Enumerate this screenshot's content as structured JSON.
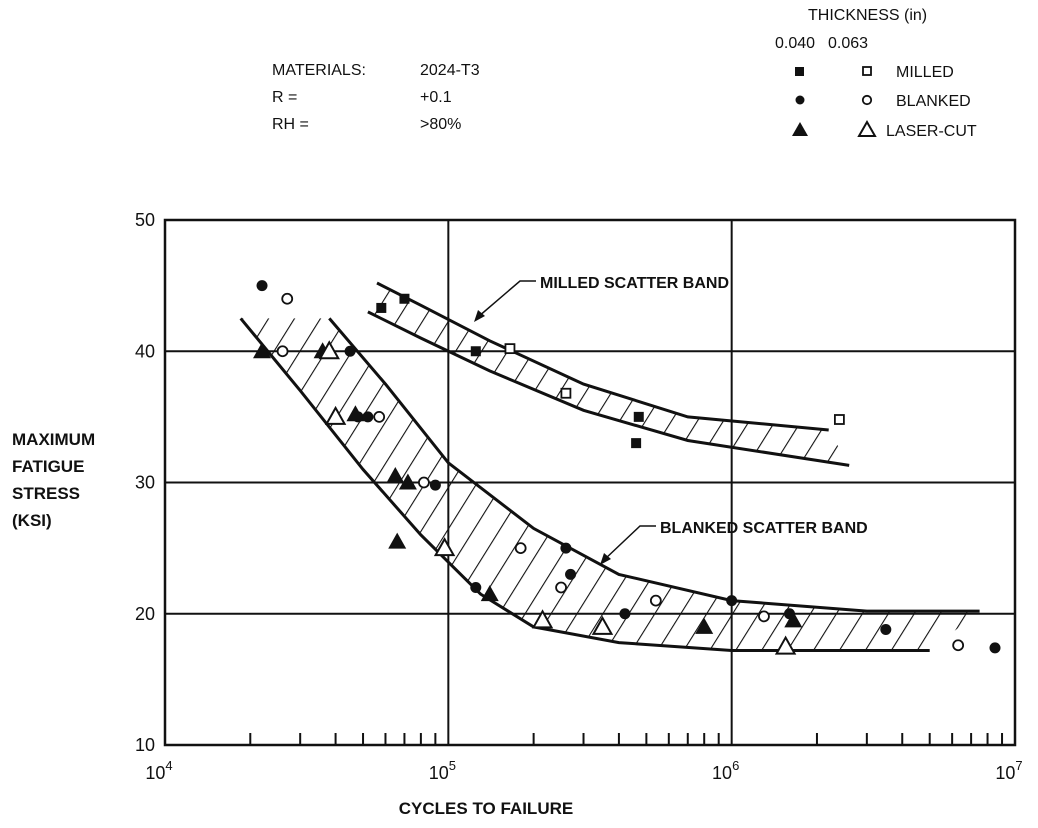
{
  "conditions": {
    "rows": [
      {
        "label": "MATERIALS:",
        "value": "2024-T3"
      },
      {
        "label": "R =",
        "value": "+0.1"
      },
      {
        "label": "RH =",
        "value": ">80%"
      }
    ]
  },
  "legend": {
    "title": "THICKNESS (in)",
    "col1": "0.040",
    "col2": "0.063",
    "items": [
      "MILLED",
      "BLANKED",
      "LASER-CUT"
    ]
  },
  "chart_data": {
    "type": "scatter",
    "xlabel": "CYCLES TO FAILURE",
    "ylabel": [
      "MAXIMUM",
      "FATIGUE",
      "STRESS",
      "(KSI)"
    ],
    "x_scale": "log",
    "xlim": [
      10000,
      10000000
    ],
    "ylim": [
      10,
      50
    ],
    "grid": true,
    "legend_position": "top-right",
    "x_ticks": [
      {
        "value": 10000,
        "base": "10",
        "exp": "4"
      },
      {
        "value": 100000,
        "base": "10",
        "exp": "5"
      },
      {
        "value": 1000000,
        "base": "10",
        "exp": "6"
      },
      {
        "value": 10000000,
        "base": "10",
        "exp": "7"
      }
    ],
    "y_ticks": [
      10,
      20,
      30,
      40,
      50
    ],
    "annotations": {
      "milled_band": "MILLED SCATTER BAND",
      "blanked_band": "BLANKED SCATTER BAND"
    },
    "bands": [
      {
        "name": "MILLED SCATTER BAND",
        "upper": [
          [
            56000,
            45.2
          ],
          [
            80000,
            43.5
          ],
          [
            140000,
            40.8
          ],
          [
            300000,
            37.5
          ],
          [
            700000,
            35.0
          ],
          [
            2200000,
            34.0
          ]
        ],
        "lower": [
          [
            52000,
            43.0
          ],
          [
            80000,
            41.0
          ],
          [
            140000,
            38.5
          ],
          [
            300000,
            35.5
          ],
          [
            700000,
            33.2
          ],
          [
            2600000,
            31.3
          ]
        ]
      },
      {
        "name": "BLANKED SCATTER BAND",
        "upper": [
          [
            38000,
            42.5
          ],
          [
            60000,
            37.5
          ],
          [
            100000,
            31.5
          ],
          [
            200000,
            26.5
          ],
          [
            400000,
            23.0
          ],
          [
            1000000,
            21.0
          ],
          [
            3000000,
            20.2
          ],
          [
            7500000,
            20.2
          ]
        ],
        "lower": [
          [
            18500,
            42.5
          ],
          [
            30000,
            37.0
          ],
          [
            50000,
            31.0
          ],
          [
            80000,
            26.0
          ],
          [
            130000,
            21.5
          ],
          [
            200000,
            19.0
          ],
          [
            400000,
            17.8
          ],
          [
            1000000,
            17.2
          ],
          [
            5000000,
            17.2
          ]
        ]
      }
    ],
    "series": [
      {
        "name": "MILLED 0.040",
        "marker": "square-filled",
        "points": [
          [
            58000,
            43.3
          ],
          [
            70000,
            44.0
          ],
          [
            125000,
            40.0
          ],
          [
            460000,
            33.0
          ],
          [
            470000,
            35.0
          ]
        ]
      },
      {
        "name": "MILLED 0.063",
        "marker": "square-open",
        "points": [
          [
            165000,
            40.2
          ],
          [
            260000,
            36.8
          ],
          [
            2400000,
            34.8
          ]
        ]
      },
      {
        "name": "BLANKED 0.040",
        "marker": "circle-filled",
        "points": [
          [
            22000,
            45.0
          ],
          [
            45000,
            40.0
          ],
          [
            48000,
            35.0
          ],
          [
            52000,
            35.0
          ],
          [
            90000,
            29.8
          ],
          [
            125000,
            22.0
          ],
          [
            260000,
            25.0
          ],
          [
            270000,
            23.0
          ],
          [
            420000,
            20.0
          ],
          [
            1000000,
            21.0
          ],
          [
            1600000,
            20.0
          ],
          [
            3500000,
            18.8
          ],
          [
            8500000,
            17.4
          ]
        ]
      },
      {
        "name": "BLANKED 0.063",
        "marker": "circle-open",
        "points": [
          [
            27000,
            44.0
          ],
          [
            26000,
            40.0
          ],
          [
            57000,
            35.0
          ],
          [
            82000,
            30.0
          ],
          [
            180000,
            25.0
          ],
          [
            250000,
            22.0
          ],
          [
            540000,
            21.0
          ],
          [
            1300000,
            19.8
          ],
          [
            6300000,
            17.6
          ]
        ]
      },
      {
        "name": "LASER-CUT 0.040",
        "marker": "triangle-filled",
        "points": [
          [
            22000,
            40.0
          ],
          [
            36000,
            40.0
          ],
          [
            47000,
            35.2
          ],
          [
            65000,
            30.5
          ],
          [
            72000,
            30.0
          ],
          [
            66000,
            25.5
          ],
          [
            140000,
            21.5
          ],
          [
            800000,
            19.0
          ],
          [
            1650000,
            19.5
          ]
        ]
      },
      {
        "name": "LASER-CUT 0.063",
        "marker": "triangle-open",
        "points": [
          [
            38000,
            40.0
          ],
          [
            40000,
            35.0
          ],
          [
            97000,
            25.0
          ],
          [
            215000,
            19.5
          ],
          [
            350000,
            19.0
          ],
          [
            1550000,
            17.5
          ]
        ]
      }
    ]
  }
}
